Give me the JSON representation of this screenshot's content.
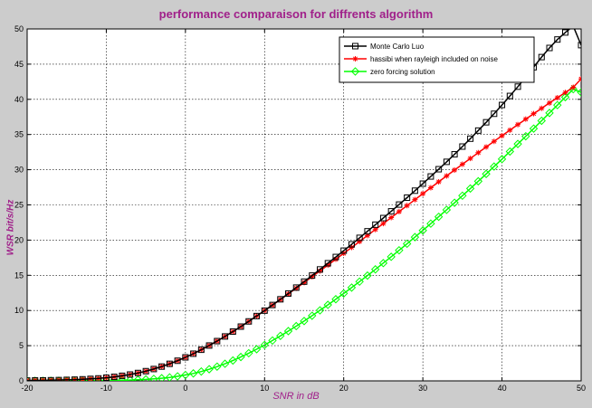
{
  "chart_data": {
    "type": "line",
    "title": "performance comparaison for diffrents algorithm",
    "xlabel": "SNR in dB",
    "ylabel": "WSR bit/s/Hz",
    "xlim": [
      -20,
      50
    ],
    "ylim": [
      0,
      50
    ],
    "xticks": [
      -20,
      -10,
      0,
      10,
      20,
      30,
      40,
      50
    ],
    "yticks": [
      0,
      5,
      10,
      15,
      20,
      25,
      30,
      35,
      40,
      45,
      50
    ],
    "grid": true,
    "legend_position": "top-right",
    "x": [
      -20,
      -19,
      -18,
      -17,
      -16,
      -15,
      -14,
      -13,
      -12,
      -11,
      -10,
      -9,
      -8,
      -7,
      -6,
      -5,
      -4,
      -3,
      -2,
      -1,
      0,
      1,
      2,
      3,
      4,
      5,
      6,
      7,
      8,
      9,
      10,
      11,
      12,
      13,
      14,
      15,
      16,
      17,
      18,
      19,
      20,
      21,
      22,
      23,
      24,
      25,
      26,
      27,
      28,
      29,
      30,
      31,
      32,
      33,
      34,
      35,
      36,
      37,
      38,
      39,
      40,
      41,
      42,
      43,
      44,
      45,
      46,
      47,
      48,
      49,
      50
    ],
    "series": [
      {
        "name": "Monte Carlo Luo",
        "color": "#000000",
        "marker": "square",
        "values": [
          0.05,
          0.06,
          0.07,
          0.09,
          0.11,
          0.14,
          0.17,
          0.22,
          0.28,
          0.35,
          0.45,
          0.57,
          0.72,
          0.9,
          1.12,
          1.38,
          1.68,
          2.03,
          2.42,
          2.86,
          3.34,
          3.86,
          4.42,
          5.02,
          5.65,
          6.31,
          7.0,
          7.71,
          8.45,
          9.21,
          9.98,
          10.78,
          11.59,
          12.41,
          13.25,
          14.1,
          14.96,
          15.83,
          16.71,
          17.6,
          18.5,
          19.4,
          20.32,
          21.25,
          22.19,
          23.13,
          24.09,
          25.05,
          26.03,
          27.02,
          28.02,
          29.04,
          30.07,
          31.12,
          32.19,
          33.29,
          34.41,
          35.56,
          36.74,
          37.95,
          39.2,
          40.48,
          41.8,
          43.16,
          44.56,
          46.0,
          47.3,
          48.5,
          49.5,
          50.4,
          47.7
        ]
      },
      {
        "name": "hassibi when rayleigh included on noise",
        "color": "#ff0000",
        "marker": "star",
        "values": [
          0.05,
          0.06,
          0.07,
          0.09,
          0.11,
          0.14,
          0.17,
          0.22,
          0.28,
          0.35,
          0.45,
          0.57,
          0.72,
          0.9,
          1.12,
          1.38,
          1.68,
          2.03,
          2.42,
          2.86,
          3.34,
          3.86,
          4.42,
          5.02,
          5.65,
          6.31,
          7.0,
          7.71,
          8.45,
          9.21,
          9.98,
          10.76,
          11.55,
          12.35,
          13.16,
          13.97,
          14.79,
          15.62,
          16.45,
          17.28,
          18.12,
          18.96,
          19.8,
          20.65,
          21.5,
          22.35,
          23.2,
          24.05,
          24.9,
          25.75,
          26.6,
          27.44,
          28.28,
          29.12,
          29.95,
          30.78,
          31.6,
          32.42,
          33.23,
          34.03,
          34.83,
          35.62,
          36.41,
          37.19,
          37.96,
          38.72,
          39.48,
          40.23,
          40.97,
          41.71,
          42.9
        ]
      },
      {
        "name": "zero forcing solution",
        "color": "#00ff00",
        "marker": "diamond",
        "values": [
          0.0,
          0.0,
          0.0,
          0.01,
          0.01,
          0.01,
          0.02,
          0.02,
          0.03,
          0.04,
          0.05,
          0.07,
          0.09,
          0.12,
          0.16,
          0.21,
          0.28,
          0.37,
          0.49,
          0.64,
          0.83,
          1.06,
          1.33,
          1.65,
          2.02,
          2.43,
          2.89,
          3.39,
          3.93,
          4.5,
          5.1,
          5.73,
          6.39,
          7.07,
          7.78,
          8.5,
          9.25,
          10.02,
          10.8,
          11.6,
          12.42,
          13.25,
          14.1,
          14.96,
          15.84,
          16.73,
          17.63,
          18.55,
          19.48,
          20.42,
          21.37,
          22.34,
          23.31,
          24.3,
          25.3,
          26.31,
          27.33,
          28.36,
          29.4,
          30.45,
          31.51,
          32.58,
          33.66,
          34.75,
          35.84,
          36.95,
          38.06,
          39.18,
          40.31,
          41.44,
          41.0
        ]
      }
    ]
  }
}
